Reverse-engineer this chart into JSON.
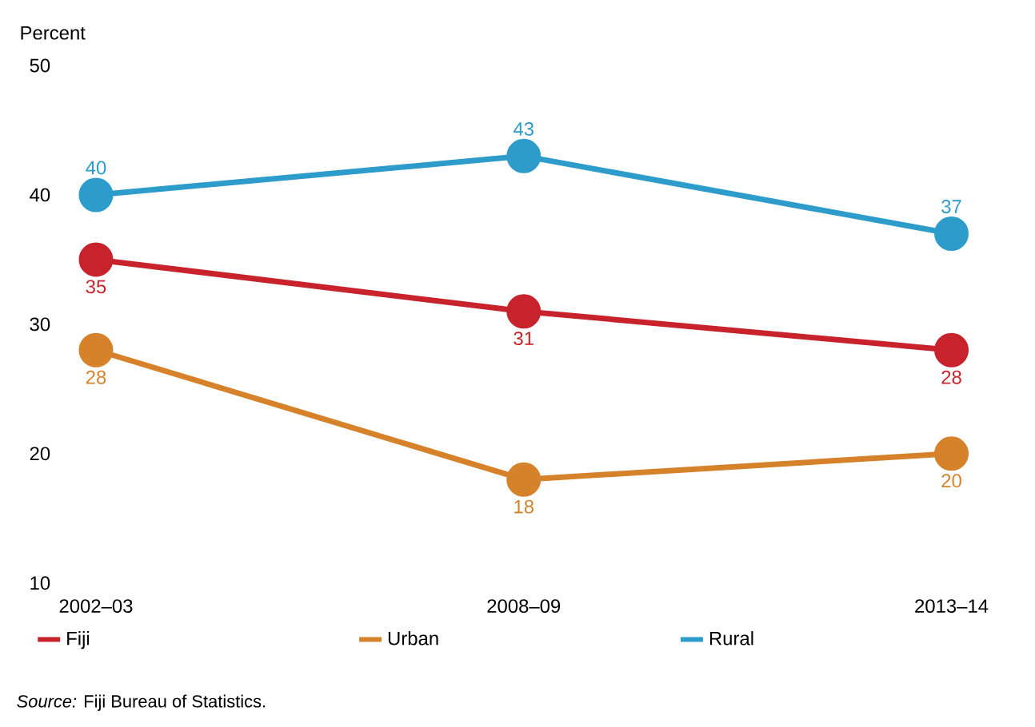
{
  "chart_data": {
    "type": "line",
    "ylabel": "Percent",
    "categories": [
      "2002–03",
      "2008–09",
      "2013–14"
    ],
    "series": [
      {
        "name": "Fiji",
        "color": "#c8232c",
        "values": [
          35,
          31,
          28
        ]
      },
      {
        "name": "Urban",
        "color": "#d5822b",
        "values": [
          28,
          18,
          20
        ]
      },
      {
        "name": "Rural",
        "color": "#2e9ccb",
        "values": [
          40,
          43,
          37
        ]
      }
    ],
    "ylim": [
      10,
      50
    ],
    "yticks": [
      10,
      20,
      30,
      40,
      50
    ],
    "legend": "bottom",
    "marker": "circle",
    "line_style": "solid",
    "data_labels": true,
    "annotations": [
      "*Source:* Fiji Bureau of Statistics."
    ]
  }
}
